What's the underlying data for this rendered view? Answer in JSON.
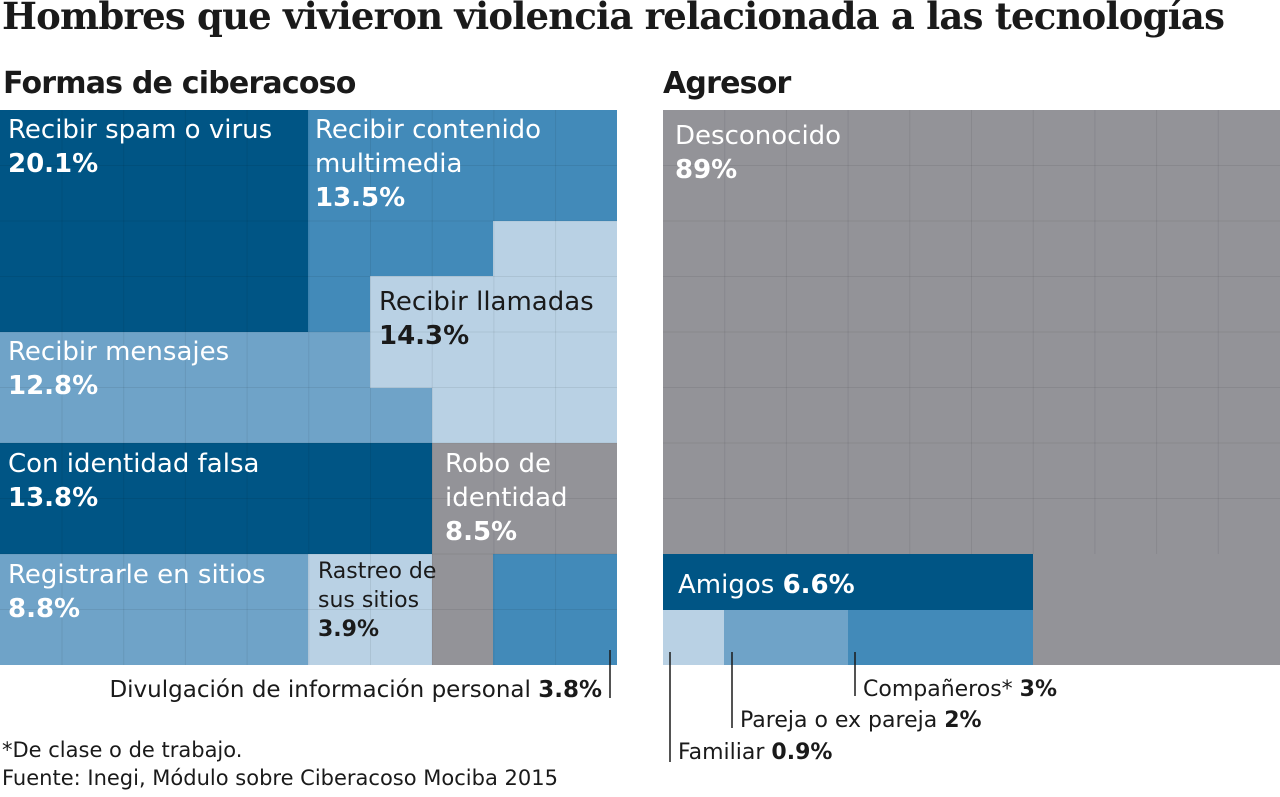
{
  "title": "Hombres que vivieron violencia relacionada a las tecnologías",
  "colors": {
    "dark_blue": "#005585",
    "mid_blue": "#428ab9",
    "light_blue": "#6fa3c8",
    "pale_blue": "#b9d1e4",
    "gray": "#939398",
    "text_dark": "#1a1a1a",
    "text_light": "#ffffff"
  },
  "chart_data": [
    {
      "type": "treemap",
      "title": "Formas de ciberacoso",
      "unit": "%",
      "items": [
        {
          "label": "Recibir spam o virus",
          "value": 20.1,
          "color": "dark_blue"
        },
        {
          "label": "Recibir contenido multimedia",
          "value": 13.5,
          "color": "mid_blue"
        },
        {
          "label": "Recibir llamadas",
          "value": 14.3,
          "color": "pale_blue"
        },
        {
          "label": "Recibir mensajes",
          "value": 12.8,
          "color": "light_blue"
        },
        {
          "label": "Con identidad falsa",
          "value": 13.8,
          "color": "dark_blue"
        },
        {
          "label": "Robo de identidad",
          "value": 8.5,
          "color": "gray"
        },
        {
          "label": "Registrarle en sitios",
          "value": 8.8,
          "color": "light_blue"
        },
        {
          "label": "Rastreo de sus sitios",
          "value": 3.9,
          "color": "pale_blue"
        },
        {
          "label": "Divulgación de información personal",
          "value": 3.8,
          "color": "mid_blue"
        }
      ]
    },
    {
      "type": "treemap",
      "title": "Agresor",
      "unit": "%",
      "items": [
        {
          "label": "Desconocido",
          "value": 89,
          "color": "gray"
        },
        {
          "label": "Amigos",
          "value": 6.6,
          "color": "dark_blue"
        },
        {
          "label": "Compañeros*",
          "value": 3,
          "color": "mid_blue"
        },
        {
          "label": "Pareja o ex pareja",
          "value": 2,
          "color": "light_blue"
        },
        {
          "label": "Familiar",
          "value": 0.9,
          "color": "pale_blue"
        }
      ]
    }
  ],
  "footnotes": {
    "note": "*De clase o de trabajo.",
    "source": "Fuente: Inegi, Módulo sobre Ciberacoso Mociba 2015"
  }
}
